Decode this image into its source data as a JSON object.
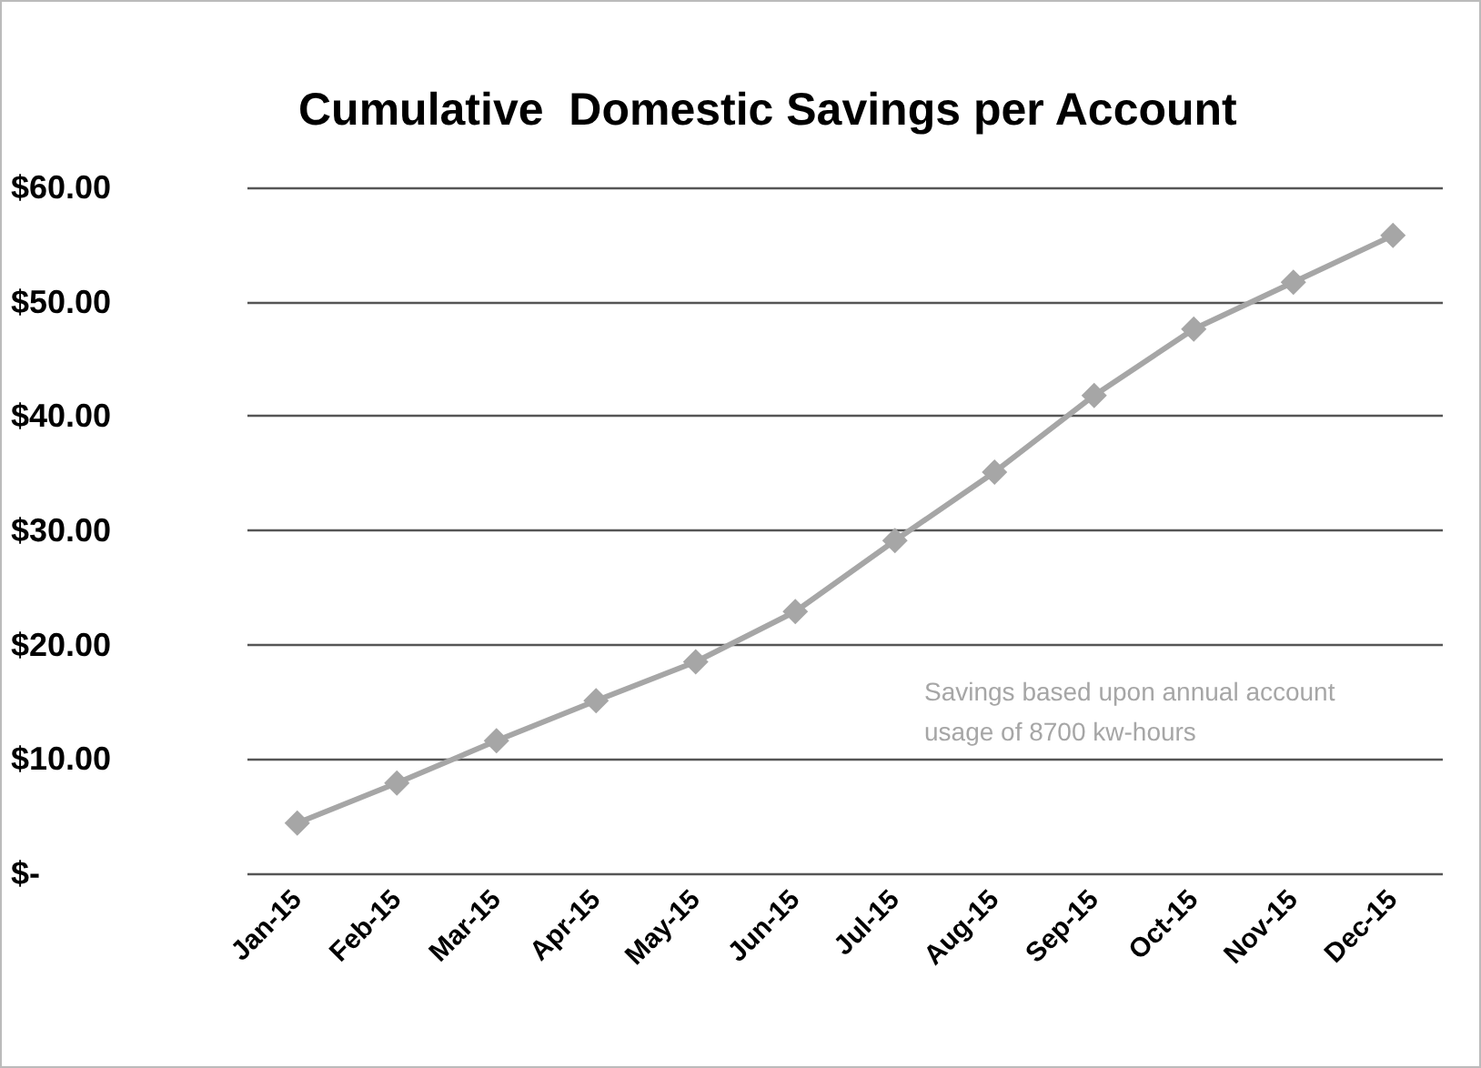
{
  "chart_data": {
    "type": "line",
    "title": "Cumulative  Domestic Savings per Account",
    "categories": [
      "Jan-15",
      "Feb-15",
      "Mar-15",
      "Apr-15",
      "May-15",
      "Jun-15",
      "Jul-15",
      "Aug-15",
      "Sep-15",
      "Oct-15",
      "Nov-15",
      "Dec-15"
    ],
    "series": [
      {
        "color": "#a6a6a6",
        "values": [
          4.4,
          7.9,
          11.6,
          15.1,
          18.5,
          22.9,
          29.1,
          35.1,
          41.8,
          47.6,
          51.7,
          55.8
        ]
      }
    ],
    "ylim": [
      0,
      60
    ],
    "yticks": [
      {
        "value": 0,
        "label": "$-"
      },
      {
        "value": 10,
        "label": "$10.00"
      },
      {
        "value": 20,
        "label": "$20.00"
      },
      {
        "value": 30,
        "label": "$30.00"
      },
      {
        "value": 40,
        "label": "$40.00"
      },
      {
        "value": 50,
        "label": "$50.00"
      },
      {
        "value": 60,
        "label": "$60.00"
      }
    ],
    "grid": "y",
    "marker": "diamond",
    "line_style": "solid",
    "annotations": [
      "Savings based upon annual account usage of 8700 kw-hours"
    ]
  }
}
